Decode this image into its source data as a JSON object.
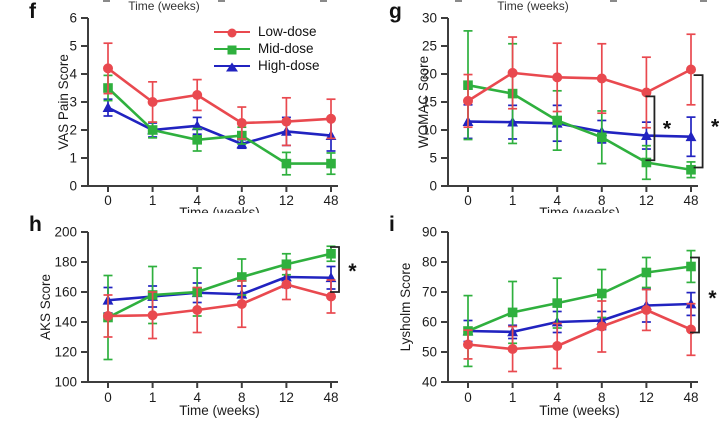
{
  "figure": {
    "background": "#ffffff",
    "axis_color": "#3d3d3d",
    "text_color": "#1c1c1c",
    "top_crop": {
      "left_xlabel": "Time (weeks)",
      "right_xlabel": "Time (weeks)"
    },
    "legend": {
      "position": "top-right-of-panel-f",
      "items": [
        {
          "label": "Low-dose",
          "color": "#e9494f",
          "marker": "circle"
        },
        {
          "label": "Mid-dose",
          "color": "#2fb03e",
          "marker": "square"
        },
        {
          "label": "High-dose",
          "color": "#2123c0",
          "marker": "triangle"
        }
      ]
    }
  },
  "chart_data": [
    {
      "id": "f",
      "type": "line",
      "panel_label": "f",
      "xlabel": "Time (weeks)",
      "ylabel": "VAS Pain Score",
      "categories": [
        "0",
        "1",
        "4",
        "8",
        "12",
        "48"
      ],
      "ylim": [
        0,
        6
      ],
      "yticks": [
        0,
        1,
        2,
        3,
        4,
        5,
        6
      ],
      "grid": false,
      "series": [
        {
          "name": "Low-dose",
          "color": "#e9494f",
          "marker": "circle",
          "values": [
            4.2,
            3.0,
            3.25,
            2.25,
            2.3,
            2.4
          ],
          "errors": [
            0.9,
            0.72,
            0.55,
            0.57,
            0.85,
            0.7
          ]
        },
        {
          "name": "Mid-dose",
          "color": "#2fb03e",
          "marker": "square",
          "values": [
            3.5,
            2.0,
            1.65,
            1.8,
            0.8,
            0.8
          ],
          "errors": [
            0.45,
            0.28,
            0.4,
            0.3,
            0.4,
            0.38
          ]
        },
        {
          "name": "High-dose",
          "color": "#2123c0",
          "marker": "triangle",
          "values": [
            2.8,
            2.0,
            2.15,
            1.5,
            1.95,
            1.8
          ],
          "errors": [
            0.3,
            0.25,
            0.3,
            0.15,
            0.5,
            0.55
          ]
        }
      ],
      "significance": []
    },
    {
      "id": "g",
      "type": "line",
      "panel_label": "g",
      "xlabel": "Time (weeks)",
      "ylabel": "WOMAC Score",
      "categories": [
        "0",
        "1",
        "4",
        "8",
        "12",
        "48"
      ],
      "ylim": [
        0,
        30
      ],
      "yticks": [
        0,
        5,
        10,
        15,
        20,
        25,
        30
      ],
      "grid": false,
      "series": [
        {
          "name": "Low-dose",
          "color": "#e9494f",
          "marker": "circle",
          "values": [
            15.2,
            20.2,
            19.4,
            19.2,
            16.7,
            20.8
          ],
          "errors": [
            4.7,
            6.4,
            6.1,
            6.2,
            6.3,
            6.3
          ]
        },
        {
          "name": "Mid-dose",
          "color": "#2fb03e",
          "marker": "square",
          "values": [
            18.0,
            16.5,
            11.7,
            8.7,
            4.2,
            2.9
          ],
          "errors": [
            9.7,
            8.9,
            5.3,
            4.7,
            3.0,
            1.4
          ]
        },
        {
          "name": "High-dose",
          "color": "#2123c0",
          "marker": "triangle",
          "values": [
            11.5,
            11.4,
            11.2,
            9.7,
            9.0,
            8.8
          ],
          "errors": [
            3.0,
            3.0,
            3.2,
            2.0,
            2.4,
            3.5
          ]
        }
      ],
      "significance": [
        {
          "x_index": 4.18,
          "y_top": 16.0,
          "y_bottom": 4.6,
          "label": "*",
          "label_x_index": 4.46,
          "label_y": 10.3
        },
        {
          "x_index": 5.26,
          "y_top": 19.8,
          "y_bottom": 3.3,
          "label": "*",
          "label_x_index": 5.54,
          "label_y": 10.6
        }
      ]
    },
    {
      "id": "h",
      "type": "line",
      "panel_label": "h",
      "xlabel": "Time (weeks)",
      "ylabel": "AKS Score",
      "categories": [
        "0",
        "1",
        "4",
        "8",
        "12",
        "48"
      ],
      "ylim": [
        100,
        200
      ],
      "yticks": [
        100,
        120,
        140,
        160,
        180,
        200
      ],
      "grid": false,
      "series": [
        {
          "name": "Low-dose",
          "color": "#e9494f",
          "marker": "circle",
          "values": [
            144,
            144.5,
            148,
            152,
            165,
            157
          ],
          "errors": [
            14,
            15.5,
            15,
            15.5,
            10,
            11
          ]
        },
        {
          "name": "Mid-dose",
          "color": "#2fb03e",
          "marker": "square",
          "values": [
            143,
            158,
            160,
            170,
            178.5,
            185.5
          ],
          "errors": [
            28,
            19,
            16,
            12,
            7,
            5
          ]
        },
        {
          "name": "High-dose",
          "color": "#2123c0",
          "marker": "triangle",
          "values": [
            154.5,
            157,
            159.5,
            158.5,
            170,
            169.5
          ],
          "errors": [
            8.5,
            7,
            6.5,
            5.5,
            7,
            7.5
          ]
        }
      ],
      "significance": [
        {
          "x_index": 5.18,
          "y_top": 190,
          "y_bottom": 160,
          "label": "*",
          "label_x_index": 5.48,
          "label_y": 174
        }
      ]
    },
    {
      "id": "i",
      "type": "line",
      "panel_label": "i",
      "xlabel": "Time (weeks)",
      "ylabel": "Lysholm Score",
      "categories": [
        "0",
        "1",
        "4",
        "8",
        "12",
        "48"
      ],
      "ylim": [
        40,
        90
      ],
      "yticks": [
        40,
        50,
        60,
        70,
        80,
        90
      ],
      "grid": false,
      "series": [
        {
          "name": "Low-dose",
          "color": "#e9494f",
          "marker": "circle",
          "values": [
            52.5,
            51,
            52,
            58.5,
            64,
            57.5
          ],
          "errors": [
            4.8,
            7.5,
            7.5,
            8.5,
            6.8,
            8.6
          ]
        },
        {
          "name": "Mid-dose",
          "color": "#2fb03e",
          "marker": "square",
          "values": [
            57,
            63.2,
            66.3,
            69.5,
            76.5,
            78.5
          ],
          "errors": [
            11.8,
            10.3,
            8.3,
            8.0,
            5.0,
            5.3
          ]
        },
        {
          "name": "High-dose",
          "color": "#2123c0",
          "marker": "triangle",
          "values": [
            57,
            56.7,
            60,
            60.5,
            65.5,
            66
          ],
          "errors": [
            3.5,
            2.2,
            3.5,
            3.0,
            5.5,
            3.8
          ]
        }
      ],
      "significance": [
        {
          "x_index": 5.18,
          "y_top": 81.5,
          "y_bottom": 56.5,
          "label": "*",
          "label_x_index": 5.48,
          "label_y": 68
        }
      ]
    }
  ]
}
